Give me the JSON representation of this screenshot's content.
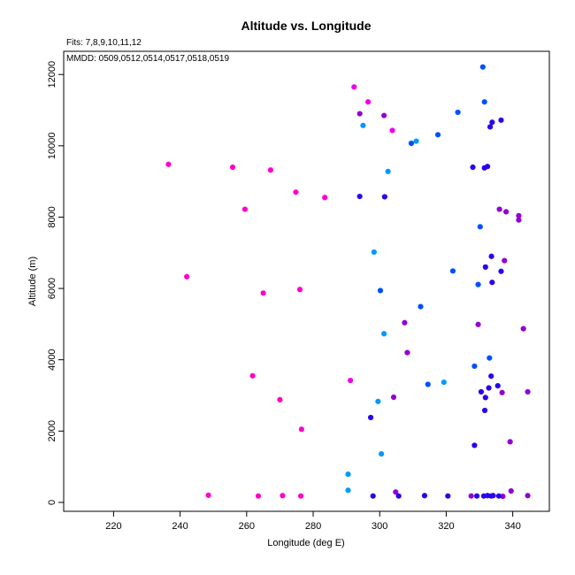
{
  "chart_data": {
    "type": "scatter",
    "title": "Altitude vs. Longitude",
    "annotations": [
      "Fits: 7,8,9,10,11,12",
      "MMDD: 0509,0512,0514,0517,0518,0519"
    ],
    "xlabel": "Longitude (deg E)",
    "ylabel": "Altitude (m)",
    "xlim": [
      205,
      351
    ],
    "ylim": [
      -250,
      12650
    ],
    "xticks": [
      220,
      240,
      260,
      280,
      300,
      320,
      340
    ],
    "yticks": [
      0,
      2000,
      4000,
      6000,
      8000,
      10000,
      12000
    ],
    "grid": false,
    "series": [
      {
        "color": "#ff00cc",
        "points": [
          [
            236.5,
            9480
          ],
          [
            255.8,
            9400
          ],
          [
            267.2,
            9320
          ],
          [
            274.8,
            8700
          ],
          [
            283.5,
            8550
          ],
          [
            259.5,
            8220
          ],
          [
            242.0,
            6330
          ],
          [
            265.0,
            5870
          ],
          [
            276.0,
            5970
          ],
          [
            261.8,
            3550
          ],
          [
            270.0,
            2880
          ],
          [
            276.5,
            2050
          ],
          [
            248.5,
            200
          ],
          [
            263.5,
            180
          ],
          [
            270.8,
            190
          ],
          [
            276.3,
            180
          ]
        ]
      },
      {
        "color": "#ee00ee",
        "points": [
          [
            292.3,
            11650
          ],
          [
            296.5,
            11230
          ],
          [
            303.8,
            10430
          ],
          [
            291.2,
            3420
          ]
        ]
      },
      {
        "color": "#9400d3",
        "points": [
          [
            294.0,
            10900
          ],
          [
            301.3,
            10850
          ],
          [
            307.5,
            5040
          ],
          [
            308.3,
            4200
          ],
          [
            304.2,
            2950
          ],
          [
            304.8,
            290
          ],
          [
            336.0,
            8220
          ],
          [
            338.0,
            8150
          ],
          [
            341.8,
            8040
          ],
          [
            341.8,
            7920
          ],
          [
            337.5,
            6780
          ],
          [
            329.6,
            4990
          ],
          [
            343.2,
            4870
          ],
          [
            344.5,
            3100
          ],
          [
            336.8,
            3080
          ],
          [
            339.2,
            1700
          ],
          [
            339.5,
            320
          ],
          [
            327.5,
            180
          ],
          [
            337.0,
            170
          ],
          [
            344.5,
            190
          ]
        ]
      },
      {
        "color": "#2b00ee",
        "points": [
          [
            333.2,
            10530
          ],
          [
            333.8,
            10660
          ],
          [
            336.5,
            10720
          ],
          [
            328.0,
            9400
          ],
          [
            331.5,
            9380
          ],
          [
            332.4,
            9420
          ],
          [
            294.0,
            8580
          ],
          [
            301.5,
            8570
          ],
          [
            333.6,
            6900
          ],
          [
            336.5,
            6480
          ],
          [
            331.8,
            6600
          ],
          [
            333.8,
            6170
          ],
          [
            333.5,
            3540
          ],
          [
            335.5,
            3270
          ],
          [
            332.8,
            3210
          ],
          [
            330.5,
            3100
          ],
          [
            331.8,
            2940
          ],
          [
            331.6,
            2580
          ],
          [
            328.5,
            1600
          ],
          [
            297.3,
            2380
          ],
          [
            298.0,
            180
          ],
          [
            305.7,
            180
          ],
          [
            313.5,
            190
          ],
          [
            320.5,
            180
          ],
          [
            329.2,
            180
          ],
          [
            331.3,
            180
          ],
          [
            332.4,
            190
          ],
          [
            333.5,
            180
          ],
          [
            334.1,
            190
          ],
          [
            335.8,
            180
          ]
        ]
      },
      {
        "color": "#0050ff",
        "points": [
          [
            331.0,
            12210
          ],
          [
            331.5,
            11230
          ],
          [
            323.5,
            10940
          ],
          [
            317.5,
            10310
          ],
          [
            309.5,
            10070
          ],
          [
            330.2,
            7730
          ],
          [
            322.0,
            6490
          ],
          [
            329.6,
            6110
          ],
          [
            300.2,
            5940
          ],
          [
            312.3,
            5490
          ],
          [
            333.0,
            4050
          ],
          [
            328.5,
            3820
          ],
          [
            314.5,
            3310
          ]
        ]
      },
      {
        "color": "#0099ff",
        "points": [
          [
            295.0,
            10570
          ],
          [
            311.0,
            10130
          ],
          [
            302.5,
            9280
          ],
          [
            298.3,
            7020
          ],
          [
            301.3,
            4730
          ],
          [
            319.3,
            3370
          ],
          [
            299.5,
            2830
          ],
          [
            300.5,
            1360
          ],
          [
            290.5,
            790
          ],
          [
            290.5,
            340
          ]
        ]
      }
    ]
  }
}
